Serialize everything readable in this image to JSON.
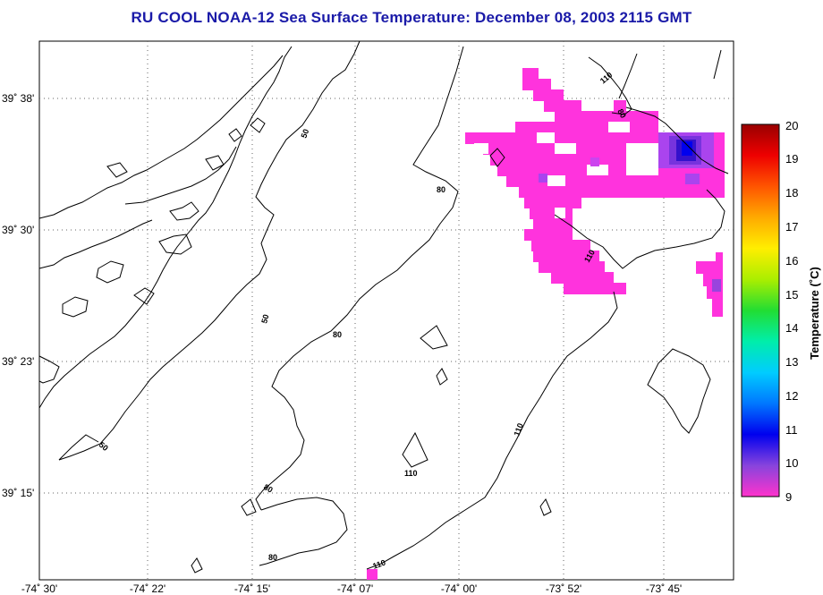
{
  "title": "RU COOL  NOAA-12  Sea Surface Temperature:  December 08, 2003 2115 GMT",
  "lat_labels": [
    "39˚ 38'",
    "39˚ 30'",
    "39˚ 23'",
    "39˚ 15'"
  ],
  "lon_labels": [
    "-74˚ 30'",
    "-74˚ 22'",
    "-74˚ 15'",
    "-74˚ 07'",
    "-74˚ 00'",
    "-73˚ 52'",
    "-73˚ 45'"
  ],
  "colorbar": {
    "title": "Temperature (˚C)",
    "ticks": [
      "20",
      "19",
      "18",
      "17",
      "16",
      "15",
      "14",
      "13",
      "12",
      "11",
      "10",
      "9"
    ],
    "range": [
      9,
      20
    ],
    "colors": [
      "#ff33cc",
      "#8844dd",
      "#0000ee",
      "#0077ff",
      "#00ccff",
      "#00eeaa",
      "#22dd33",
      "#aaee00",
      "#ffee00",
      "#ffaa00",
      "#ff5500",
      "#ee0000",
      "#990000"
    ]
  },
  "contour_labels": [
    "50",
    "50",
    "50",
    "80",
    "80",
    "80",
    "80",
    "80",
    "110",
    "110",
    "110",
    "110",
    "110",
    "110"
  ],
  "colors": {
    "title": "#1a1aa8",
    "land_outline": "#000000",
    "grid": "#555555"
  }
}
